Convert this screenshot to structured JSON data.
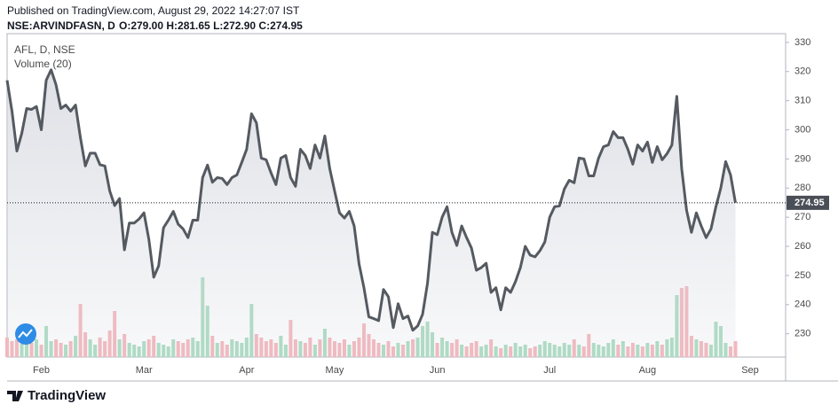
{
  "header": {
    "published": "Published on TradingView.com, August 29, 2022 14:27:07 IST",
    "symbol": "NSE:ARVINDFASN, D",
    "ohlc": "O:279.00 H:281.65 L:272.90 C:274.95"
  },
  "brand": "TradingView",
  "chart_data": {
    "type": "line",
    "categories": [
      null,
      null,
      null,
      null,
      null,
      null,
      null,
      "Feb",
      null,
      null,
      null,
      null,
      null,
      null,
      null,
      null,
      null,
      null,
      null,
      null,
      null,
      null,
      null,
      null,
      null,
      null,
      null,
      null,
      "Mar",
      null,
      null,
      null,
      null,
      null,
      null,
      null,
      null,
      null,
      null,
      null,
      null,
      null,
      null,
      null,
      null,
      null,
      null,
      null,
      null,
      "Apr",
      null,
      null,
      null,
      null,
      null,
      null,
      null,
      null,
      null,
      null,
      null,
      null,
      null,
      null,
      null,
      null,
      null,
      "May",
      null,
      null,
      null,
      null,
      null,
      null,
      null,
      null,
      null,
      null,
      null,
      null,
      null,
      null,
      null,
      null,
      null,
      null,
      null,
      null,
      "Jun",
      null,
      null,
      null,
      null,
      null,
      null,
      null,
      null,
      null,
      null,
      null,
      null,
      null,
      null,
      null,
      null,
      null,
      null,
      null,
      null,
      null,
      null,
      "Jul",
      null,
      null,
      null,
      null,
      null,
      null,
      null,
      null,
      null,
      null,
      null,
      null,
      null,
      null,
      null,
      null,
      null,
      null,
      null,
      "Aug",
      null,
      null,
      null,
      null,
      null,
      null,
      null,
      null,
      null,
      null,
      null,
      null,
      null,
      null,
      null,
      null,
      null,
      null,
      null,
      null,
      "Sep"
    ],
    "series": [
      {
        "name": "AFL, D, NSE",
        "color": "#555a61",
        "values": [
          317,
          306.4,
          292.7,
          298.8,
          307.3,
          307,
          308,
          300,
          317,
          320.6,
          315.5,
          307.3,
          308.5,
          306.4,
          308.5,
          297.3,
          287.6,
          292,
          292,
          288,
          287.6,
          279,
          274,
          276.4,
          258.8,
          268,
          268,
          269.4,
          271.5,
          262.4,
          249.4,
          253.3,
          266.4,
          269,
          272,
          267.6,
          266,
          263,
          269,
          269,
          283.6,
          287.9,
          282,
          283.6,
          283.3,
          281.2,
          283.6,
          284.5,
          288.8,
          293.3,
          305.5,
          302.4,
          290.3,
          289.7,
          285.2,
          281.2,
          290.3,
          291.2,
          283.6,
          280.6,
          293.3,
          291.2,
          286.7,
          294.8,
          290.3,
          297.9,
          286.7,
          279,
          271.5,
          269.7,
          272,
          267,
          254,
          245.8,
          235.8,
          235.2,
          234.5,
          245.2,
          242.7,
          232.1,
          240.3,
          235.2,
          236.1,
          231.2,
          232.7,
          236.7,
          247.3,
          264.8,
          264,
          270,
          273.6,
          264.8,
          260.3,
          267,
          263,
          259.4,
          251.8,
          252.7,
          254.2,
          244.2,
          245.8,
          238.2,
          245.8,
          244.2,
          247.9,
          252.7,
          260,
          257,
          256.4,
          258.5,
          261.5,
          270,
          273.6,
          273.9,
          279.7,
          282.7,
          281.8,
          290.3,
          290,
          284.2,
          284.2,
          290.3,
          294.2,
          294.8,
          299.4,
          297.3,
          297.3,
          293.3,
          288.2,
          294.8,
          292.7,
          295.8,
          288.8,
          294.2,
          289.7,
          291.8,
          294.8,
          311.5,
          286.7,
          272.4,
          264.8,
          271.5,
          267,
          263,
          266,
          273.6,
          280,
          289.1,
          284.5,
          274.95,
          null,
          null,
          null
        ]
      },
      {
        "name": "Volume (20)",
        "type": "bar",
        "axis": "y2",
        "up_color": "#a8dcc0",
        "down_color": "#f5b5bb",
        "values": [
          22,
          18,
          20,
          15,
          24,
          16,
          20,
          14,
          35,
          18,
          20,
          16,
          14,
          18,
          24,
          60,
          28,
          20,
          14,
          22,
          18,
          30,
          52,
          20,
          26,
          16,
          14,
          12,
          18,
          20,
          24,
          16,
          14,
          12,
          20,
          18,
          16,
          20,
          22,
          18,
          90,
          58,
          24,
          16,
          18,
          14,
          20,
          18,
          16,
          22,
          60,
          26,
          22,
          18,
          20,
          16,
          24,
          14,
          42,
          20,
          18,
          16,
          22,
          14,
          20,
          32,
          22,
          18,
          16,
          20,
          14,
          18,
          22,
          38,
          26,
          20,
          16,
          14,
          18,
          12,
          16,
          14,
          18,
          20,
          22,
          35,
          40,
          28,
          16,
          22,
          18,
          16,
          20,
          14,
          12,
          16,
          18,
          12,
          14,
          20,
          12,
          10,
          14,
          12,
          16,
          12,
          14,
          10,
          12,
          14,
          18,
          16,
          14,
          12,
          16,
          14,
          20,
          14,
          12,
          26,
          16,
          14,
          12,
          16,
          20,
          14,
          18,
          12,
          16,
          14,
          12,
          16,
          14,
          18,
          14,
          20,
          22,
          70,
          78,
          80,
          24,
          20,
          18,
          16,
          14,
          40,
          35,
          16,
          12,
          18,
          null,
          null,
          null
        ]
      }
    ],
    "ylim": [
      222,
      333
    ],
    "yticks": [
      230,
      240,
      250,
      260,
      270,
      280,
      290,
      300,
      310,
      320,
      330
    ],
    "y2lim": [
      0,
      100
    ],
    "area": true,
    "last_price_line": true
  }
}
